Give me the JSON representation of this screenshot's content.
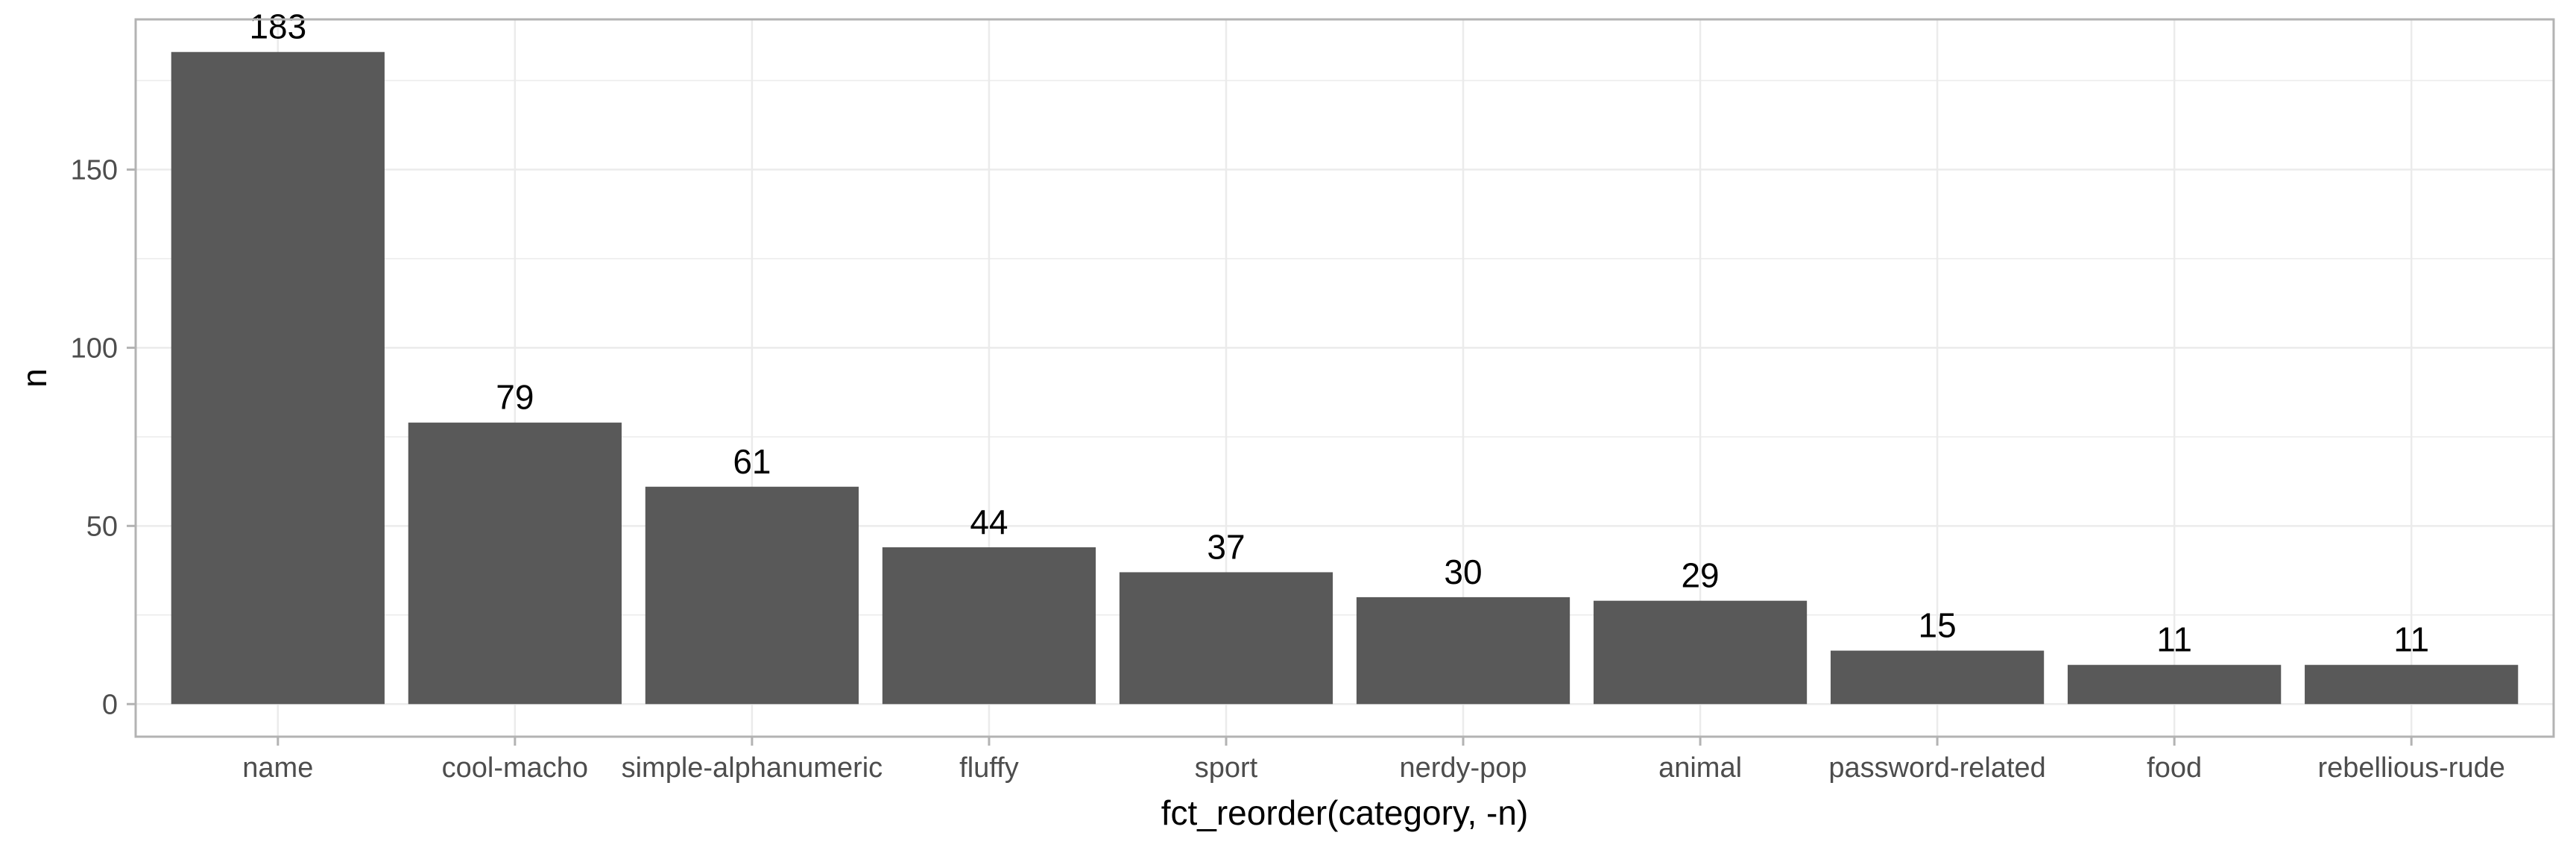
{
  "chart_data": {
    "type": "bar",
    "title": "",
    "xlabel": "fct_reorder(category, -n)",
    "ylabel": "n",
    "categories": [
      "name",
      "cool-macho",
      "simple-alphanumeric",
      "fluffy",
      "sport",
      "nerdy-pop",
      "animal",
      "password-related",
      "food",
      "rebellious-rude"
    ],
    "values": [
      183,
      79,
      61,
      44,
      37,
      30,
      29,
      15,
      11,
      11
    ],
    "data_labels": [
      "183",
      "79",
      "61",
      "44",
      "37",
      "30",
      "29",
      "15",
      "11",
      "11"
    ],
    "ylim": [
      -9.15,
      192.15
    ],
    "y_ticks": [
      0,
      50,
      100,
      150
    ],
    "y_tick_labels": [
      "0",
      "50",
      "100",
      "150"
    ],
    "grid": true,
    "legend": "none",
    "colors": {
      "bar": "#595959",
      "grid": "#ebebeb",
      "border": "#b3b3b3",
      "background": "#ffffff"
    }
  }
}
